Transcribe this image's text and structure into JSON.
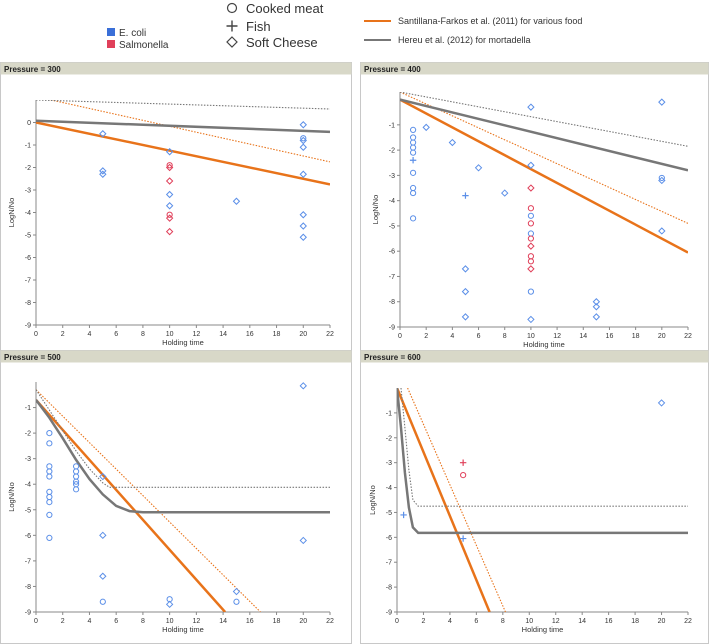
{
  "legend": {
    "organisms": [
      {
        "label": "E. coli",
        "color": "#3a6fd8"
      },
      {
        "label": "Salmonella",
        "color": "#e0405a"
      }
    ],
    "foods": [
      {
        "label": "Cooked meat",
        "marker": "circle"
      },
      {
        "label": "Fish",
        "marker": "plus"
      },
      {
        "label": "Soft Cheese",
        "marker": "diamond"
      }
    ],
    "models": [
      {
        "label": "Santillana-Farkos et al. (2011) for various food",
        "color": "#e8731a"
      },
      {
        "label": "Hereu et al. (2012) for mortadella",
        "color": "#777777"
      }
    ]
  },
  "colors": {
    "ecoli": "#5b8fe8",
    "salmonella": "#e0405a",
    "santillana": "#e8731a",
    "hereu": "#777777",
    "header": "#d8d8c8"
  },
  "chart_data": [
    {
      "type": "scatter",
      "title": "Pressure = 300",
      "xlabel": "Holding time",
      "ylabel": "LogN/No",
      "xlim": [
        0,
        22
      ],
      "ylim": [
        -9,
        1
      ],
      "xticks": [
        0,
        2,
        4,
        6,
        8,
        10,
        12,
        14,
        16,
        18,
        20,
        22
      ],
      "yticks": [
        0,
        -1,
        -2,
        -3,
        -4,
        -5,
        -6,
        -7,
        -8,
        -9
      ],
      "points": [
        {
          "x": 5,
          "y": -0.5,
          "org": "ecoli",
          "food": "diamond"
        },
        {
          "x": 5,
          "y": -2.15,
          "org": "ecoli",
          "food": "diamond"
        },
        {
          "x": 5,
          "y": -2.3,
          "org": "ecoli",
          "food": "diamond"
        },
        {
          "x": 10,
          "y": -1.3,
          "org": "ecoli",
          "food": "diamond"
        },
        {
          "x": 10,
          "y": -1.9,
          "org": "salmonella",
          "food": "circle"
        },
        {
          "x": 10,
          "y": -2.0,
          "org": "salmonella",
          "food": "diamond"
        },
        {
          "x": 10,
          "y": -2.6,
          "org": "salmonella",
          "food": "diamond"
        },
        {
          "x": 10,
          "y": -3.2,
          "org": "ecoli",
          "food": "diamond"
        },
        {
          "x": 10,
          "y": -3.7,
          "org": "ecoli",
          "food": "diamond"
        },
        {
          "x": 10,
          "y": -4.1,
          "org": "salmonella",
          "food": "circle"
        },
        {
          "x": 10,
          "y": -4.25,
          "org": "salmonella",
          "food": "diamond"
        },
        {
          "x": 10,
          "y": -4.85,
          "org": "salmonella",
          "food": "diamond"
        },
        {
          "x": 15,
          "y": -3.5,
          "org": "ecoli",
          "food": "diamond"
        },
        {
          "x": 20,
          "y": -0.1,
          "org": "ecoli",
          "food": "diamond"
        },
        {
          "x": 20,
          "y": -0.7,
          "org": "ecoli",
          "food": "circle"
        },
        {
          "x": 20,
          "y": -0.8,
          "org": "ecoli",
          "food": "diamond"
        },
        {
          "x": 20,
          "y": -1.1,
          "org": "ecoli",
          "food": "diamond"
        },
        {
          "x": 20,
          "y": -2.3,
          "org": "ecoli",
          "food": "diamond"
        },
        {
          "x": 20,
          "y": -4.1,
          "org": "ecoli",
          "food": "diamond"
        },
        {
          "x": 20,
          "y": -4.6,
          "org": "ecoli",
          "food": "diamond"
        },
        {
          "x": 20,
          "y": -5.1,
          "org": "ecoli",
          "food": "diamond"
        }
      ],
      "lines": [
        {
          "model": "santillana",
          "style": "solid",
          "x": [
            0,
            22
          ],
          "y": [
            0,
            -2.75
          ]
        },
        {
          "model": "santillana",
          "style": "dotted",
          "x": [
            0,
            22
          ],
          "y": [
            1.15,
            -1.75
          ]
        },
        {
          "model": "hereu",
          "style": "solid",
          "x": [
            0,
            22
          ],
          "y": [
            0.08,
            -0.42
          ]
        },
        {
          "model": "hereu",
          "style": "dotted",
          "x": [
            0,
            22
          ],
          "y": [
            1.0,
            0.6
          ]
        }
      ]
    },
    {
      "type": "scatter",
      "title": "Pressure = 400",
      "xlabel": "Holding time",
      "ylabel": "LogN/No",
      "xlim": [
        0,
        22
      ],
      "ylim": [
        -9,
        0.3
      ],
      "xticks": [
        0,
        2,
        4,
        6,
        8,
        10,
        12,
        14,
        16,
        18,
        20,
        22
      ],
      "yticks": [
        -1,
        -2,
        -3,
        -4,
        -5,
        -6,
        -7,
        -8,
        -9
      ],
      "points": [
        {
          "x": 1,
          "y": -1.2,
          "org": "ecoli",
          "food": "circle"
        },
        {
          "x": 1,
          "y": -1.5,
          "org": "ecoli",
          "food": "circle"
        },
        {
          "x": 1,
          "y": -1.7,
          "org": "ecoli",
          "food": "circle"
        },
        {
          "x": 1,
          "y": -1.9,
          "org": "ecoli",
          "food": "circle"
        },
        {
          "x": 1,
          "y": -2.1,
          "org": "ecoli",
          "food": "circle"
        },
        {
          "x": 1,
          "y": -2.4,
          "org": "ecoli",
          "food": "plus"
        },
        {
          "x": 1,
          "y": -2.9,
          "org": "ecoli",
          "food": "circle"
        },
        {
          "x": 1,
          "y": -3.5,
          "org": "ecoli",
          "food": "circle"
        },
        {
          "x": 1,
          "y": -3.7,
          "org": "ecoli",
          "food": "circle"
        },
        {
          "x": 1,
          "y": -4.7,
          "org": "ecoli",
          "food": "circle"
        },
        {
          "x": 2,
          "y": -1.1,
          "org": "ecoli",
          "food": "diamond"
        },
        {
          "x": 4,
          "y": -1.7,
          "org": "ecoli",
          "food": "diamond"
        },
        {
          "x": 5,
          "y": -3.8,
          "org": "ecoli",
          "food": "plus"
        },
        {
          "x": 5,
          "y": -6.7,
          "org": "ecoli",
          "food": "diamond"
        },
        {
          "x": 5,
          "y": -7.6,
          "org": "ecoli",
          "food": "diamond"
        },
        {
          "x": 5,
          "y": -8.6,
          "org": "ecoli",
          "food": "diamond"
        },
        {
          "x": 6,
          "y": -2.7,
          "org": "ecoli",
          "food": "diamond"
        },
        {
          "x": 8,
          "y": -3.7,
          "org": "ecoli",
          "food": "diamond"
        },
        {
          "x": 10,
          "y": -0.3,
          "org": "ecoli",
          "food": "diamond"
        },
        {
          "x": 10,
          "y": -2.6,
          "org": "ecoli",
          "food": "diamond"
        },
        {
          "x": 10,
          "y": -3.5,
          "org": "salmonella",
          "food": "diamond"
        },
        {
          "x": 10,
          "y": -4.3,
          "org": "salmonella",
          "food": "circle"
        },
        {
          "x": 10,
          "y": -4.6,
          "org": "ecoli",
          "food": "circle"
        },
        {
          "x": 10,
          "y": -4.9,
          "org": "salmonella",
          "food": "circle"
        },
        {
          "x": 10,
          "y": -5.3,
          "org": "ecoli",
          "food": "circle"
        },
        {
          "x": 10,
          "y": -5.5,
          "org": "salmonella",
          "food": "circle"
        },
        {
          "x": 10,
          "y": -5.8,
          "org": "salmonella",
          "food": "diamond"
        },
        {
          "x": 10,
          "y": -6.2,
          "org": "salmonella",
          "food": "circle"
        },
        {
          "x": 10,
          "y": -6.4,
          "org": "salmonella",
          "food": "circle"
        },
        {
          "x": 10,
          "y": -6.7,
          "org": "salmonella",
          "food": "diamond"
        },
        {
          "x": 10,
          "y": -7.6,
          "org": "ecoli",
          "food": "circle"
        },
        {
          "x": 10,
          "y": -8.7,
          "org": "ecoli",
          "food": "diamond"
        },
        {
          "x": 15,
          "y": -8.0,
          "org": "ecoli",
          "food": "diamond"
        },
        {
          "x": 15,
          "y": -8.2,
          "org": "ecoli",
          "food": "diamond"
        },
        {
          "x": 15,
          "y": -8.6,
          "org": "ecoli",
          "food": "diamond"
        },
        {
          "x": 20,
          "y": -0.1,
          "org": "ecoli",
          "food": "diamond"
        },
        {
          "x": 20,
          "y": -3.1,
          "org": "ecoli",
          "food": "circle"
        },
        {
          "x": 20,
          "y": -3.2,
          "org": "ecoli",
          "food": "diamond"
        },
        {
          "x": 20,
          "y": -5.2,
          "org": "ecoli",
          "food": "diamond"
        }
      ],
      "lines": [
        {
          "model": "santillana",
          "style": "solid",
          "x": [
            0,
            22
          ],
          "y": [
            0,
            -6.05
          ]
        },
        {
          "model": "santillana",
          "style": "dotted",
          "x": [
            0,
            22
          ],
          "y": [
            0.3,
            -4.9
          ]
        },
        {
          "model": "hereu",
          "style": "solid",
          "x": [
            0,
            22
          ],
          "y": [
            0,
            -2.8
          ]
        },
        {
          "model": "hereu",
          "style": "dotted",
          "x": [
            0,
            22
          ],
          "y": [
            0.3,
            -1.85
          ]
        }
      ]
    },
    {
      "type": "scatter",
      "title": "Pressure = 500",
      "xlabel": "Holding time",
      "ylabel": "LogN/No",
      "xlim": [
        0,
        22
      ],
      "ylim": [
        -9,
        0
      ],
      "xticks": [
        0,
        2,
        4,
        6,
        8,
        10,
        12,
        14,
        16,
        18,
        20,
        22
      ],
      "yticks": [
        -1,
        -2,
        -3,
        -4,
        -5,
        -6,
        -7,
        -8,
        -9
      ],
      "points": [
        {
          "x": 1,
          "y": -2.0,
          "org": "ecoli",
          "food": "circle"
        },
        {
          "x": 1,
          "y": -2.4,
          "org": "ecoli",
          "food": "circle"
        },
        {
          "x": 1,
          "y": -3.3,
          "org": "ecoli",
          "food": "circle"
        },
        {
          "x": 1,
          "y": -3.5,
          "org": "ecoli",
          "food": "circle"
        },
        {
          "x": 1,
          "y": -3.7,
          "org": "ecoli",
          "food": "circle"
        },
        {
          "x": 1,
          "y": -4.3,
          "org": "ecoli",
          "food": "circle"
        },
        {
          "x": 1,
          "y": -4.5,
          "org": "ecoli",
          "food": "circle"
        },
        {
          "x": 1,
          "y": -4.7,
          "org": "ecoli",
          "food": "circle"
        },
        {
          "x": 1,
          "y": -5.2,
          "org": "ecoli",
          "food": "circle"
        },
        {
          "x": 1,
          "y": -6.1,
          "org": "ecoli",
          "food": "circle"
        },
        {
          "x": 3,
          "y": -3.3,
          "org": "ecoli",
          "food": "circle"
        },
        {
          "x": 3,
          "y": -3.5,
          "org": "ecoli",
          "food": "circle"
        },
        {
          "x": 3,
          "y": -3.7,
          "org": "ecoli",
          "food": "circle"
        },
        {
          "x": 3,
          "y": -3.9,
          "org": "ecoli",
          "food": "circle"
        },
        {
          "x": 3,
          "y": -4.0,
          "org": "ecoli",
          "food": "circle"
        },
        {
          "x": 3,
          "y": -4.2,
          "org": "ecoli",
          "food": "circle"
        },
        {
          "x": 5,
          "y": -3.7,
          "org": "ecoli",
          "food": "diamond"
        },
        {
          "x": 5,
          "y": -6.0,
          "org": "ecoli",
          "food": "diamond"
        },
        {
          "x": 5,
          "y": -7.6,
          "org": "ecoli",
          "food": "diamond"
        },
        {
          "x": 5,
          "y": -8.6,
          "org": "ecoli",
          "food": "circle"
        },
        {
          "x": 10,
          "y": -8.5,
          "org": "ecoli",
          "food": "circle"
        },
        {
          "x": 10,
          "y": -8.7,
          "org": "ecoli",
          "food": "diamond"
        },
        {
          "x": 15,
          "y": -8.2,
          "org": "ecoli",
          "food": "diamond"
        },
        {
          "x": 15,
          "y": -8.6,
          "org": "ecoli",
          "food": "circle"
        },
        {
          "x": 20,
          "y": -0.15,
          "org": "ecoli",
          "food": "diamond"
        },
        {
          "x": 20,
          "y": -6.2,
          "org": "ecoli",
          "food": "diamond"
        }
      ],
      "lines": [
        {
          "model": "santillana",
          "style": "solid",
          "x": [
            0,
            14.15
          ],
          "y": [
            -0.7,
            -9
          ]
        },
        {
          "model": "santillana",
          "style": "dotted",
          "x": [
            0,
            16.8
          ],
          "y": [
            -0.3,
            -9
          ]
        },
        {
          "model": "hereu",
          "style": "solid",
          "x": [
            0,
            1,
            2,
            3,
            4,
            5,
            6,
            7,
            8,
            22
          ],
          "y": [
            -0.7,
            -1.4,
            -2.2,
            -3.05,
            -3.8,
            -4.4,
            -4.85,
            -5.05,
            -5.1,
            -5.1
          ]
        },
        {
          "model": "hereu",
          "style": "dotted",
          "x": [
            0,
            1,
            2,
            3,
            4,
            5,
            5.5,
            22
          ],
          "y": [
            -0.3,
            -1.1,
            -1.9,
            -2.7,
            -3.4,
            -3.95,
            -4.12,
            -4.12
          ]
        }
      ]
    },
    {
      "type": "scatter",
      "title": "Pressure = 600",
      "xlabel": "Holding time",
      "ylabel": "LogN/No",
      "xlim": [
        0,
        22
      ],
      "ylim": [
        -9,
        0
      ],
      "xticks": [
        0,
        2,
        4,
        6,
        8,
        10,
        12,
        14,
        16,
        18,
        20,
        22
      ],
      "yticks": [
        -1,
        -2,
        -3,
        -4,
        -5,
        -6,
        -7,
        -8,
        -9
      ],
      "points": [
        {
          "x": 0.5,
          "y": -5.1,
          "org": "ecoli",
          "food": "plus"
        },
        {
          "x": 5,
          "y": -3.0,
          "org": "salmonella",
          "food": "plus"
        },
        {
          "x": 5,
          "y": -3.5,
          "org": "salmonella",
          "food": "circle"
        },
        {
          "x": 5,
          "y": -6.05,
          "org": "ecoli",
          "food": "plus"
        },
        {
          "x": 20,
          "y": -0.6,
          "org": "ecoli",
          "food": "diamond"
        }
      ],
      "lines": [
        {
          "model": "santillana",
          "style": "solid",
          "x": [
            0,
            7.0
          ],
          "y": [
            0,
            -9
          ]
        },
        {
          "model": "santillana",
          "style": "dotted",
          "x": [
            0.8,
            8.2
          ],
          "y": [
            0,
            -9
          ]
        },
        {
          "model": "hereu",
          "style": "solid",
          "x": [
            0,
            0.3,
            0.6,
            0.9,
            1.2,
            1.6,
            22
          ],
          "y": [
            0,
            -1.6,
            -3.4,
            -4.8,
            -5.6,
            -5.82,
            -5.82
          ]
        },
        {
          "model": "hereu",
          "style": "dotted",
          "x": [
            0.3,
            0.6,
            0.9,
            1.2,
            1.6,
            22
          ],
          "y": [
            0,
            -1.6,
            -3.3,
            -4.5,
            -4.75,
            -4.75
          ]
        }
      ]
    }
  ]
}
